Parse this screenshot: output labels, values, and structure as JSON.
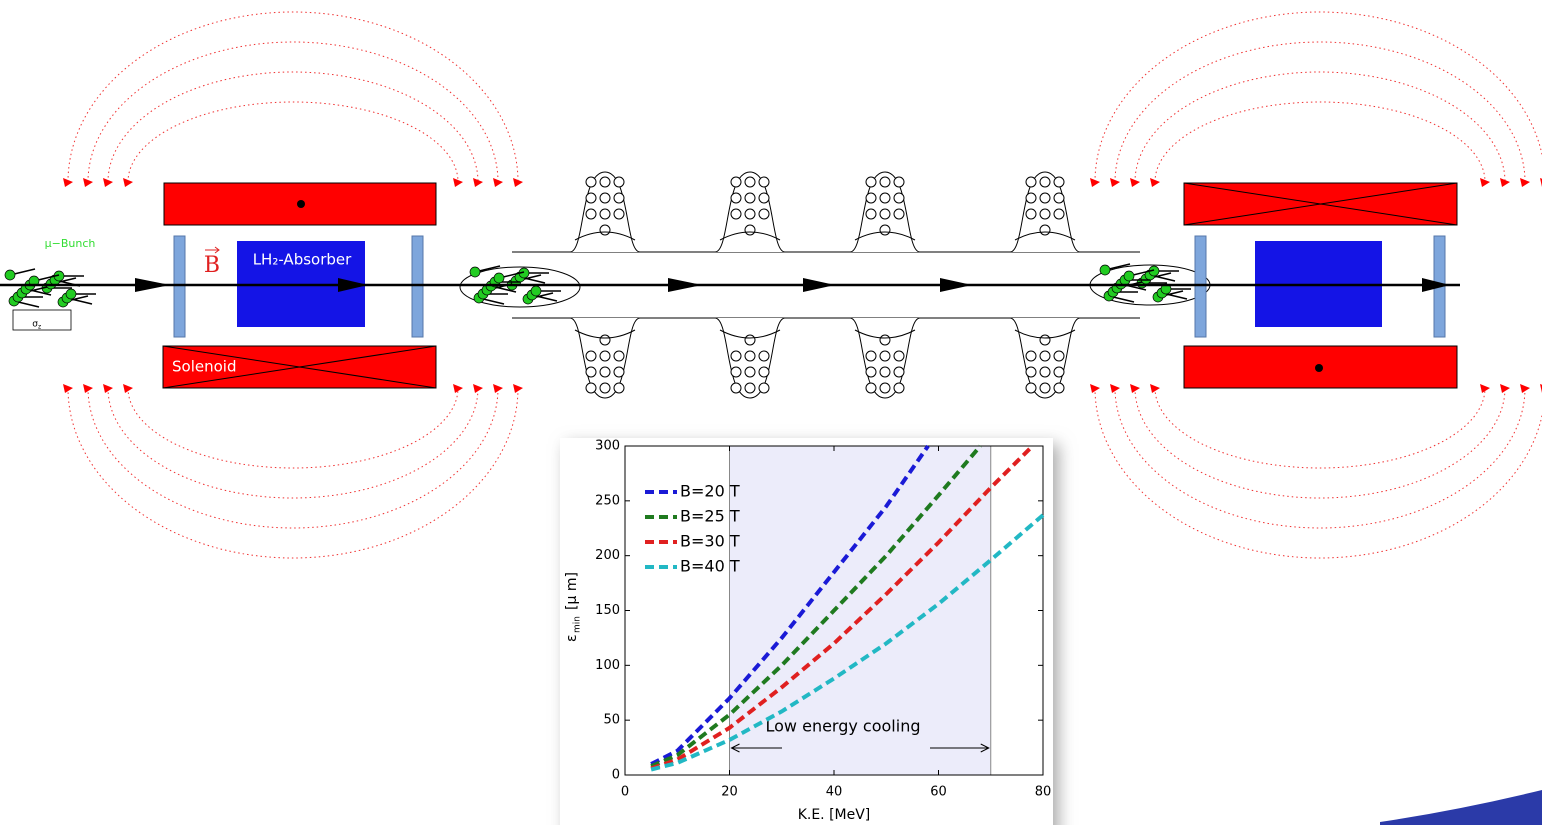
{
  "diagram": {
    "bunch_label": "μ−Bunch",
    "sigma_label": "σ",
    "sigma_sub": "z",
    "field_label": "B",
    "absorber_label": "LH₂-Absorber",
    "solenoid_label": "Solenoid"
  },
  "chart_data": {
    "type": "line",
    "xlabel": "K.E. [MeV]",
    "ylabel": {
      "symbol": "ε",
      "sub": "min",
      "unit": "[μ m]"
    },
    "xlim": [
      0,
      80
    ],
    "ylim": [
      0,
      300
    ],
    "xticks": [
      0,
      20,
      40,
      60,
      80
    ],
    "yticks": [
      0,
      50,
      100,
      150,
      200,
      250,
      300
    ],
    "grid": false,
    "legend": "upper left",
    "shaded_range": [
      20,
      70
    ],
    "shade_color": "#ececfa",
    "annotation": "Low energy cooling",
    "series": [
      {
        "name": "B=20 T",
        "color": "#1a1ad6",
        "x": [
          5,
          10,
          20,
          30,
          40,
          50,
          58
        ],
        "values": [
          10,
          22,
          70,
          125,
          185,
          245,
          300
        ]
      },
      {
        "name": "B=25 T",
        "color": "#1f7a1f",
        "x": [
          5,
          10,
          20,
          30,
          40,
          50,
          60,
          68
        ],
        "values": [
          8,
          18,
          55,
          100,
          150,
          200,
          255,
          300
        ]
      },
      {
        "name": "B=30 T",
        "color": "#e02020",
        "x": [
          5,
          10,
          20,
          30,
          40,
          50,
          60,
          70,
          78
        ],
        "values": [
          6,
          14,
          43,
          80,
          120,
          165,
          212,
          262,
          300
        ]
      },
      {
        "name": "B=40 T",
        "color": "#22b8c4",
        "x": [
          5,
          10,
          20,
          30,
          40,
          50,
          60,
          70,
          80
        ],
        "values": [
          5,
          11,
          32,
          58,
          88,
          120,
          156,
          196,
          237
        ]
      }
    ]
  }
}
